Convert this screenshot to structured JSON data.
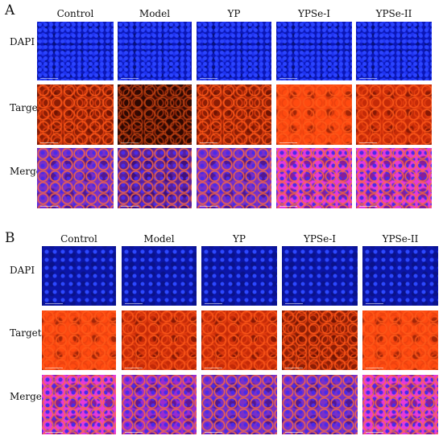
{
  "panels": [
    {
      "letter": "A",
      "columns": [
        "Control",
        "Model",
        "YP",
        "YPSe-I",
        "YPSe-II"
      ],
      "rows": [
        "DAPI",
        "Target",
        "Merge"
      ]
    },
    {
      "letter": "B",
      "columns": [
        "Control",
        "Model",
        "YP",
        "YPSe-I",
        "YPSe-II"
      ],
      "rows": [
        "DAPI",
        "Target",
        "Merge"
      ]
    }
  ]
}
